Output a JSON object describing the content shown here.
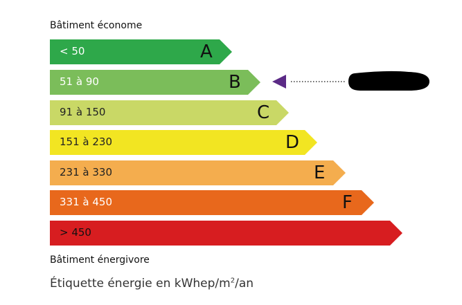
{
  "top_label": "Bâtiment économe",
  "bottom_label": "Bâtiment énergivore",
  "footer": {
    "prefix": "Étiquette énergie en kWhep/m",
    "sup": "2",
    "suffix": "/an"
  },
  "classes": [
    {
      "letter": "A",
      "range": "< 50",
      "color": "#2ea84a"
    },
    {
      "letter": "B",
      "range": "51 à 90",
      "color": "#7bbd5a"
    },
    {
      "letter": "C",
      "range": "91 à 150",
      "color": "#c9d866"
    },
    {
      "letter": "D",
      "range": "151 à 230",
      "color": "#f2e522"
    },
    {
      "letter": "E",
      "range": "231 à 330",
      "color": "#f4ad4e"
    },
    {
      "letter": "F",
      "range": "331 à 450",
      "color": "#e8681c"
    },
    {
      "letter": "",
      "range": "> 450",
      "color": "#d71d20"
    }
  ],
  "indicator": {
    "class": "B",
    "color": "#5b2a86",
    "value_redacted": true
  }
}
